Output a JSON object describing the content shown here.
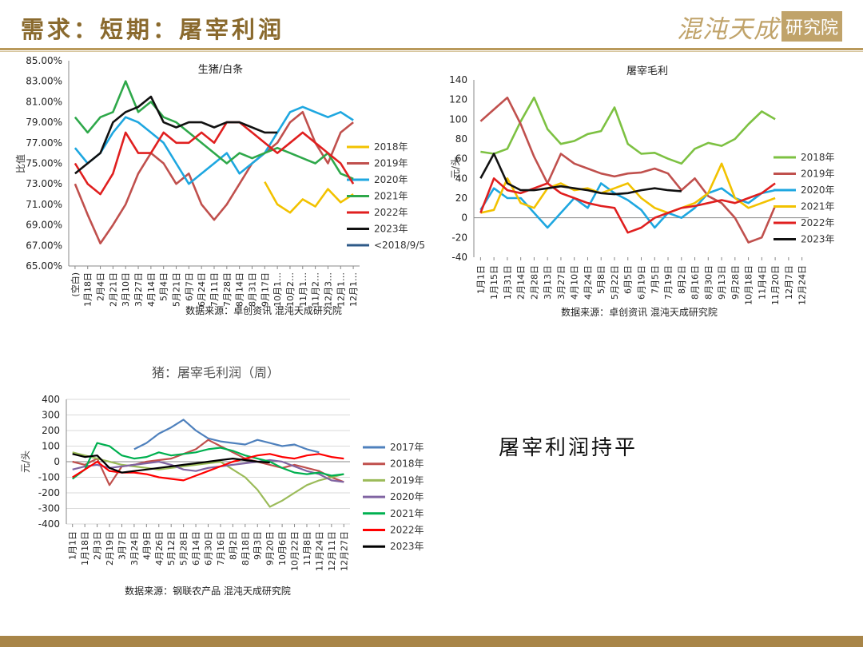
{
  "header": {
    "title": "需求：短期：屠宰利润",
    "logo_script": "混沌天成",
    "logo_box": "研究院"
  },
  "note": "屠宰利润持平",
  "colors": {
    "brand": "#b9995b",
    "title": "#8a6a2e"
  },
  "chart_data": [
    {
      "type": "line",
      "title": "生猪/白条",
      "ylabel": "比值",
      "ylim": [
        65,
        85
      ],
      "y_ticks": [
        "65.00%",
        "67.00%",
        "69.00%",
        "71.00%",
        "73.00%",
        "75.00%",
        "77.00%",
        "79.00%",
        "81.00%",
        "83.00%",
        "85.00%"
      ],
      "x_ticks": [
        "(空白)",
        "1月18日",
        "2月4日",
        "2月21日",
        "3月10日",
        "3月27日",
        "4月14日",
        "5月4日",
        "5月21日",
        "6月7日",
        "6月24日",
        "7月11日",
        "7月28日",
        "8月14日",
        "8月31日",
        "9月17日",
        "10月1…",
        "10月2…",
        "11月1…",
        "11月2…",
        "12月3…",
        "12月1…",
        "12月1…"
      ],
      "source": "数据来源：卓创资讯 混沌天成研究院",
      "series": [
        {
          "name": "2018年",
          "color": "#f2c200",
          "values": [
            null,
            null,
            null,
            null,
            null,
            null,
            null,
            null,
            null,
            null,
            null,
            null,
            null,
            null,
            null,
            73.2,
            71,
            70.2,
            71.5,
            70.8,
            72.5,
            71.2,
            72
          ]
        },
        {
          "name": "2019年",
          "color": "#c0504d",
          "values": [
            73,
            70,
            67.2,
            69,
            71,
            74,
            76,
            75,
            73,
            74,
            71,
            69.5,
            71,
            73,
            75,
            76,
            77,
            79,
            80,
            77,
            75,
            78,
            79
          ]
        },
        {
          "name": "2020年",
          "color": "#1ea7e0",
          "values": [
            76.5,
            75,
            76,
            78,
            79.5,
            79,
            78,
            77,
            75,
            73,
            74,
            75,
            76,
            74,
            75,
            76,
            78,
            80,
            80.5,
            80,
            79.5,
            80,
            79.2
          ]
        },
        {
          "name": "2021年",
          "color": "#2ea84a",
          "values": [
            79.5,
            78,
            79.5,
            80,
            83,
            80,
            81,
            79.5,
            79,
            78,
            77,
            76,
            75,
            76,
            75.5,
            76,
            76.5,
            76,
            75.5,
            75,
            76,
            74,
            73.5
          ]
        },
        {
          "name": "2022年",
          "color": "#e01f1f",
          "values": [
            75,
            73,
            72,
            74,
            78,
            76,
            76,
            78,
            77,
            77,
            78,
            77,
            79,
            79,
            78,
            77,
            76,
            77,
            78,
            77,
            76,
            75,
            73
          ]
        },
        {
          "name": "2023年",
          "color": "#111111",
          "values": [
            74,
            75,
            76,
            79,
            80,
            80.5,
            81.5,
            79,
            78.5,
            79,
            79,
            78.5,
            79,
            79,
            78.5,
            78,
            78,
            null,
            null,
            null,
            null,
            null,
            null
          ]
        },
        {
          "name": "<2018/9/5",
          "color": "#2e5a88",
          "values": []
        }
      ]
    },
    {
      "type": "line",
      "title": "屠宰毛利",
      "ylabel": "元/头",
      "ylim": [
        -40,
        140
      ],
      "y_ticks": [
        "-40",
        "-20",
        "0",
        "20",
        "40",
        "60",
        "80",
        "100",
        "120",
        "140"
      ],
      "x_ticks": [
        "1月1日",
        "1月15日",
        "1月31日",
        "2月14日",
        "2月28日",
        "3月13日",
        "3月27日",
        "4月10日",
        "4月24日",
        "5月8日",
        "5月22日",
        "6月5日",
        "6月19日",
        "7月5日",
        "7月19日",
        "8月2日",
        "8月16日",
        "8月30日",
        "9月13日",
        "9月28日",
        "10月18日",
        "11月4日",
        "11月20日",
        "12月7日",
        "12月24日"
      ],
      "source": "数据来源：卓创资讯 混沌天成研究院",
      "series": [
        {
          "name": "2018年",
          "color": "#7dc142",
          "values": [
            67,
            65,
            70,
            98,
            122,
            90,
            75,
            78,
            85,
            88,
            112,
            75,
            65,
            66,
            60,
            55,
            70,
            76,
            73,
            80,
            95,
            108,
            100,
            null,
            null
          ]
        },
        {
          "name": "2019年",
          "color": "#c0504d",
          "values": [
            98,
            110,
            122,
            95,
            62,
            35,
            65,
            55,
            50,
            45,
            42,
            45,
            46,
            50,
            45,
            28,
            40,
            22,
            15,
            0,
            -25,
            -20,
            12,
            null,
            null
          ]
        },
        {
          "name": "2020年",
          "color": "#1ea7e0",
          "values": [
            8,
            30,
            20,
            20,
            5,
            -10,
            5,
            20,
            10,
            35,
            25,
            18,
            8,
            -10,
            5,
            0,
            10,
            25,
            30,
            20,
            15,
            25,
            28,
            null,
            null
          ]
        },
        {
          "name": "2021年",
          "color": "#f2c200",
          "values": [
            5,
            8,
            40,
            15,
            10,
            30,
            35,
            28,
            30,
            25,
            30,
            35,
            20,
            10,
            5,
            10,
            15,
            25,
            55,
            20,
            10,
            15,
            20,
            null,
            null
          ]
        },
        {
          "name": "2022年",
          "color": "#e01f1f",
          "values": [
            5,
            40,
            28,
            25,
            30,
            35,
            25,
            20,
            15,
            12,
            10,
            -15,
            -10,
            0,
            5,
            10,
            12,
            15,
            18,
            15,
            20,
            25,
            35,
            null,
            null
          ]
        },
        {
          "name": "2023年",
          "color": "#111111",
          "values": [
            40,
            65,
            35,
            28,
            28,
            30,
            32,
            30,
            28,
            25,
            24,
            25,
            28,
            30,
            28,
            27,
            null,
            null,
            null,
            null,
            null,
            null,
            null,
            null,
            null
          ]
        }
      ]
    },
    {
      "type": "line",
      "title": "猪：屠宰毛利润（周）",
      "ylabel": "元/头",
      "ylim": [
        -400,
        400
      ],
      "y_ticks": [
        "-400",
        "-300",
        "-200",
        "-100",
        "0",
        "100",
        "200",
        "300",
        "400"
      ],
      "x_ticks": [
        "1月1日",
        "1月18日",
        "2月3日",
        "2月19日",
        "3月7日",
        "3月24日",
        "4月9日",
        "4月26日",
        "5月12日",
        "5月28日",
        "6月14日",
        "6月30日",
        "7月16日",
        "8月2日",
        "8月18日",
        "9月3日",
        "9月20日",
        "10月6日",
        "10月22日",
        "11月8日",
        "11月24日",
        "12月11日",
        "12月27日"
      ],
      "source": "数据来源：钢联农产品 混沌天成研究院",
      "series": [
        {
          "name": "2017年",
          "color": "#4f81bd",
          "values": [
            null,
            null,
            null,
            null,
            null,
            80,
            120,
            180,
            220,
            270,
            200,
            150,
            130,
            120,
            110,
            140,
            120,
            100,
            110,
            80,
            60,
            null,
            null
          ]
        },
        {
          "name": "2018年",
          "color": "#c0504d",
          "values": [
            0,
            -20,
            20,
            -150,
            -30,
            -20,
            0,
            10,
            20,
            50,
            80,
            140,
            100,
            60,
            20,
            0,
            -20,
            -40,
            -20,
            -40,
            -60,
            -100,
            -130
          ]
        },
        {
          "name": "2019年",
          "color": "#9bbb59",
          "values": [
            60,
            40,
            20,
            0,
            -20,
            -30,
            -40,
            -50,
            -40,
            -30,
            -20,
            -10,
            0,
            -50,
            -100,
            -180,
            -290,
            -250,
            -200,
            -150,
            -120,
            -100,
            -80
          ]
        },
        {
          "name": "2020年",
          "color": "#8064a2",
          "values": [
            -50,
            -30,
            -20,
            -40,
            -30,
            -20,
            -10,
            0,
            -20,
            -50,
            -60,
            -40,
            -30,
            -20,
            -10,
            0,
            10,
            0,
            -30,
            -60,
            -80,
            -120,
            -130
          ]
        },
        {
          "name": "2021年",
          "color": "#00b050",
          "values": [
            -110,
            -50,
            120,
            100,
            40,
            20,
            30,
            60,
            40,
            50,
            60,
            80,
            90,
            70,
            40,
            20,
            0,
            -40,
            -70,
            -80,
            -70,
            -90,
            -80
          ]
        },
        {
          "name": "2022年",
          "color": "#ff0000",
          "values": [
            -100,
            -50,
            0,
            -60,
            -70,
            -70,
            -80,
            -100,
            -110,
            -120,
            -90,
            -60,
            -30,
            0,
            20,
            40,
            50,
            30,
            20,
            40,
            50,
            30,
            20
          ]
        },
        {
          "name": "2023年",
          "color": "#000000",
          "values": [
            50,
            30,
            40,
            -40,
            -70,
            -60,
            -50,
            -40,
            -30,
            -20,
            -10,
            0,
            10,
            20,
            10,
            0,
            -5,
            null,
            null,
            null,
            null,
            null,
            null
          ]
        }
      ]
    }
  ]
}
